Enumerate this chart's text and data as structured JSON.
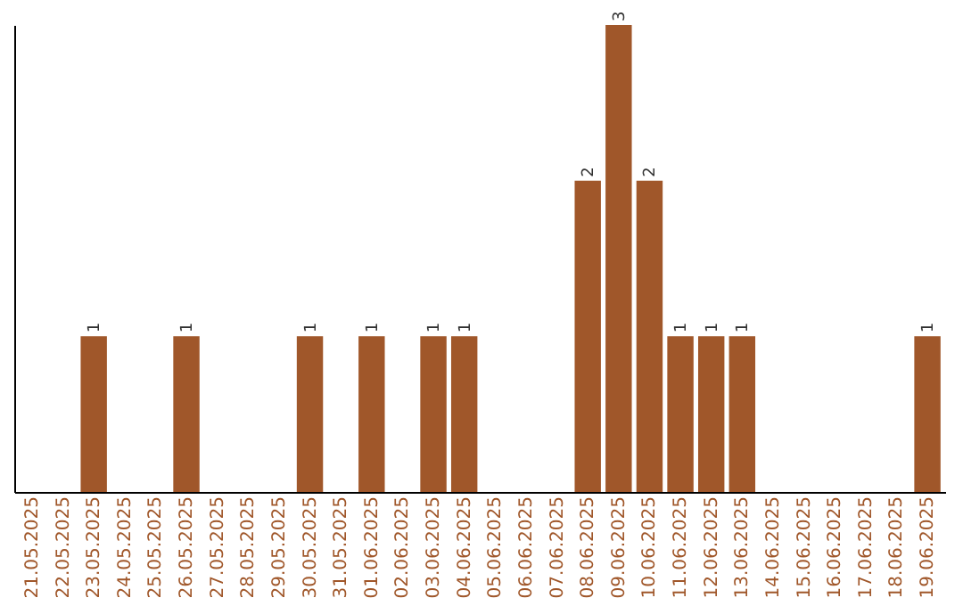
{
  "chart_data": {
    "type": "bar",
    "categories": [
      "21.05.2025",
      "22.05.2025",
      "23.05.2025",
      "24.05.2025",
      "25.05.2025",
      "26.05.2025",
      "27.05.2025",
      "28.05.2025",
      "29.05.2025",
      "30.05.2025",
      "31.05.2025",
      "01.06.2025",
      "02.06.2025",
      "03.06.2025",
      "04.06.2025",
      "05.06.2025",
      "06.06.2025",
      "07.06.2025",
      "08.06.2025",
      "09.06.2025",
      "10.06.2025",
      "11.06.2025",
      "12.06.2025",
      "13.06.2025",
      "14.06.2025",
      "15.06.2025",
      "16.06.2025",
      "17.06.2025",
      "18.06.2025",
      "19.06.2025"
    ],
    "values": [
      0,
      0,
      1,
      0,
      0,
      1,
      0,
      0,
      0,
      1,
      0,
      1,
      0,
      1,
      1,
      0,
      0,
      0,
      2,
      3,
      2,
      1,
      1,
      1,
      0,
      0,
      0,
      0,
      0,
      1
    ],
    "value_labels": [
      null,
      null,
      "1",
      null,
      null,
      "1",
      null,
      null,
      null,
      "1",
      null,
      "1",
      null,
      "1",
      "1",
      null,
      null,
      null,
      "2",
      "3",
      "2",
      "1",
      "1",
      "1",
      null,
      null,
      null,
      null,
      null,
      "1"
    ],
    "color": "#a0572a",
    "grid": false
  }
}
